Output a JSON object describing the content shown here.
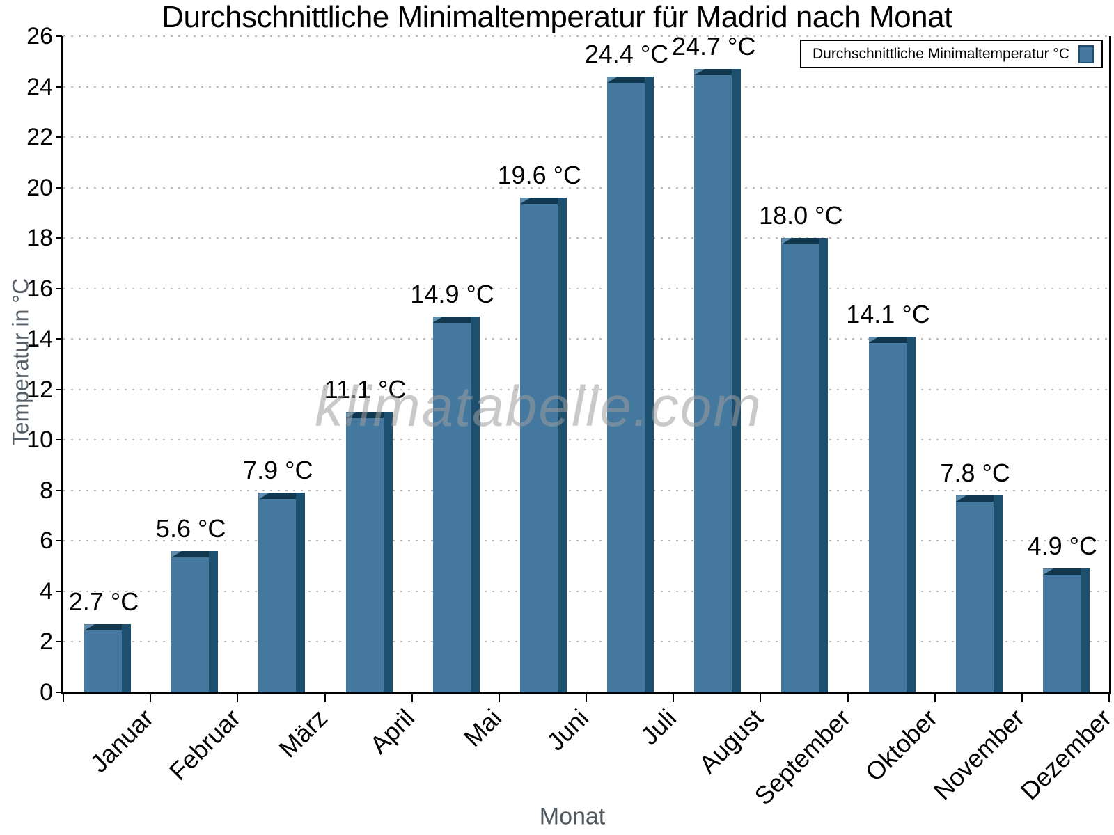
{
  "watermark": "klimatabelle.com",
  "chart_data": {
    "type": "bar",
    "title": "Durchschnittliche Minimaltemperatur für Madrid nach Monat",
    "xlabel": "Monat",
    "ylabel": "Temperatur in °C",
    "legend_label": "Durchschnittliche Minimaltemperatur °C",
    "legend_position": "top-right",
    "categories": [
      "Januar",
      "Februar",
      "März",
      "April",
      "Mai",
      "Juni",
      "Juli",
      "August",
      "September",
      "Oktober",
      "November",
      "Dezember"
    ],
    "values": [
      2.7,
      5.6,
      7.9,
      11.1,
      14.9,
      19.6,
      24.4,
      24.7,
      18.0,
      14.1,
      7.8,
      4.9
    ],
    "value_labels": [
      "2.7 °C",
      "5.6 °C",
      "7.9 °C",
      "11.1 °C",
      "14.9 °C",
      "19.6 °C",
      "24.4 °C",
      "24.7 °C",
      "18.0 °C",
      "14.1 °C",
      "7.8 °C",
      "4.9 °C"
    ],
    "ylim": [
      0,
      26
    ],
    "ytick_step": 2,
    "grid": "horizontal-dotted",
    "colors": {
      "bar_face": "#44789e",
      "bar_top": "#123850",
      "bar_side": "#1d4f6f",
      "bar_bevel": "#5f8eae",
      "gridline": "#bcbcbc",
      "axis": "#000000",
      "axis_title": "#565f68"
    }
  }
}
